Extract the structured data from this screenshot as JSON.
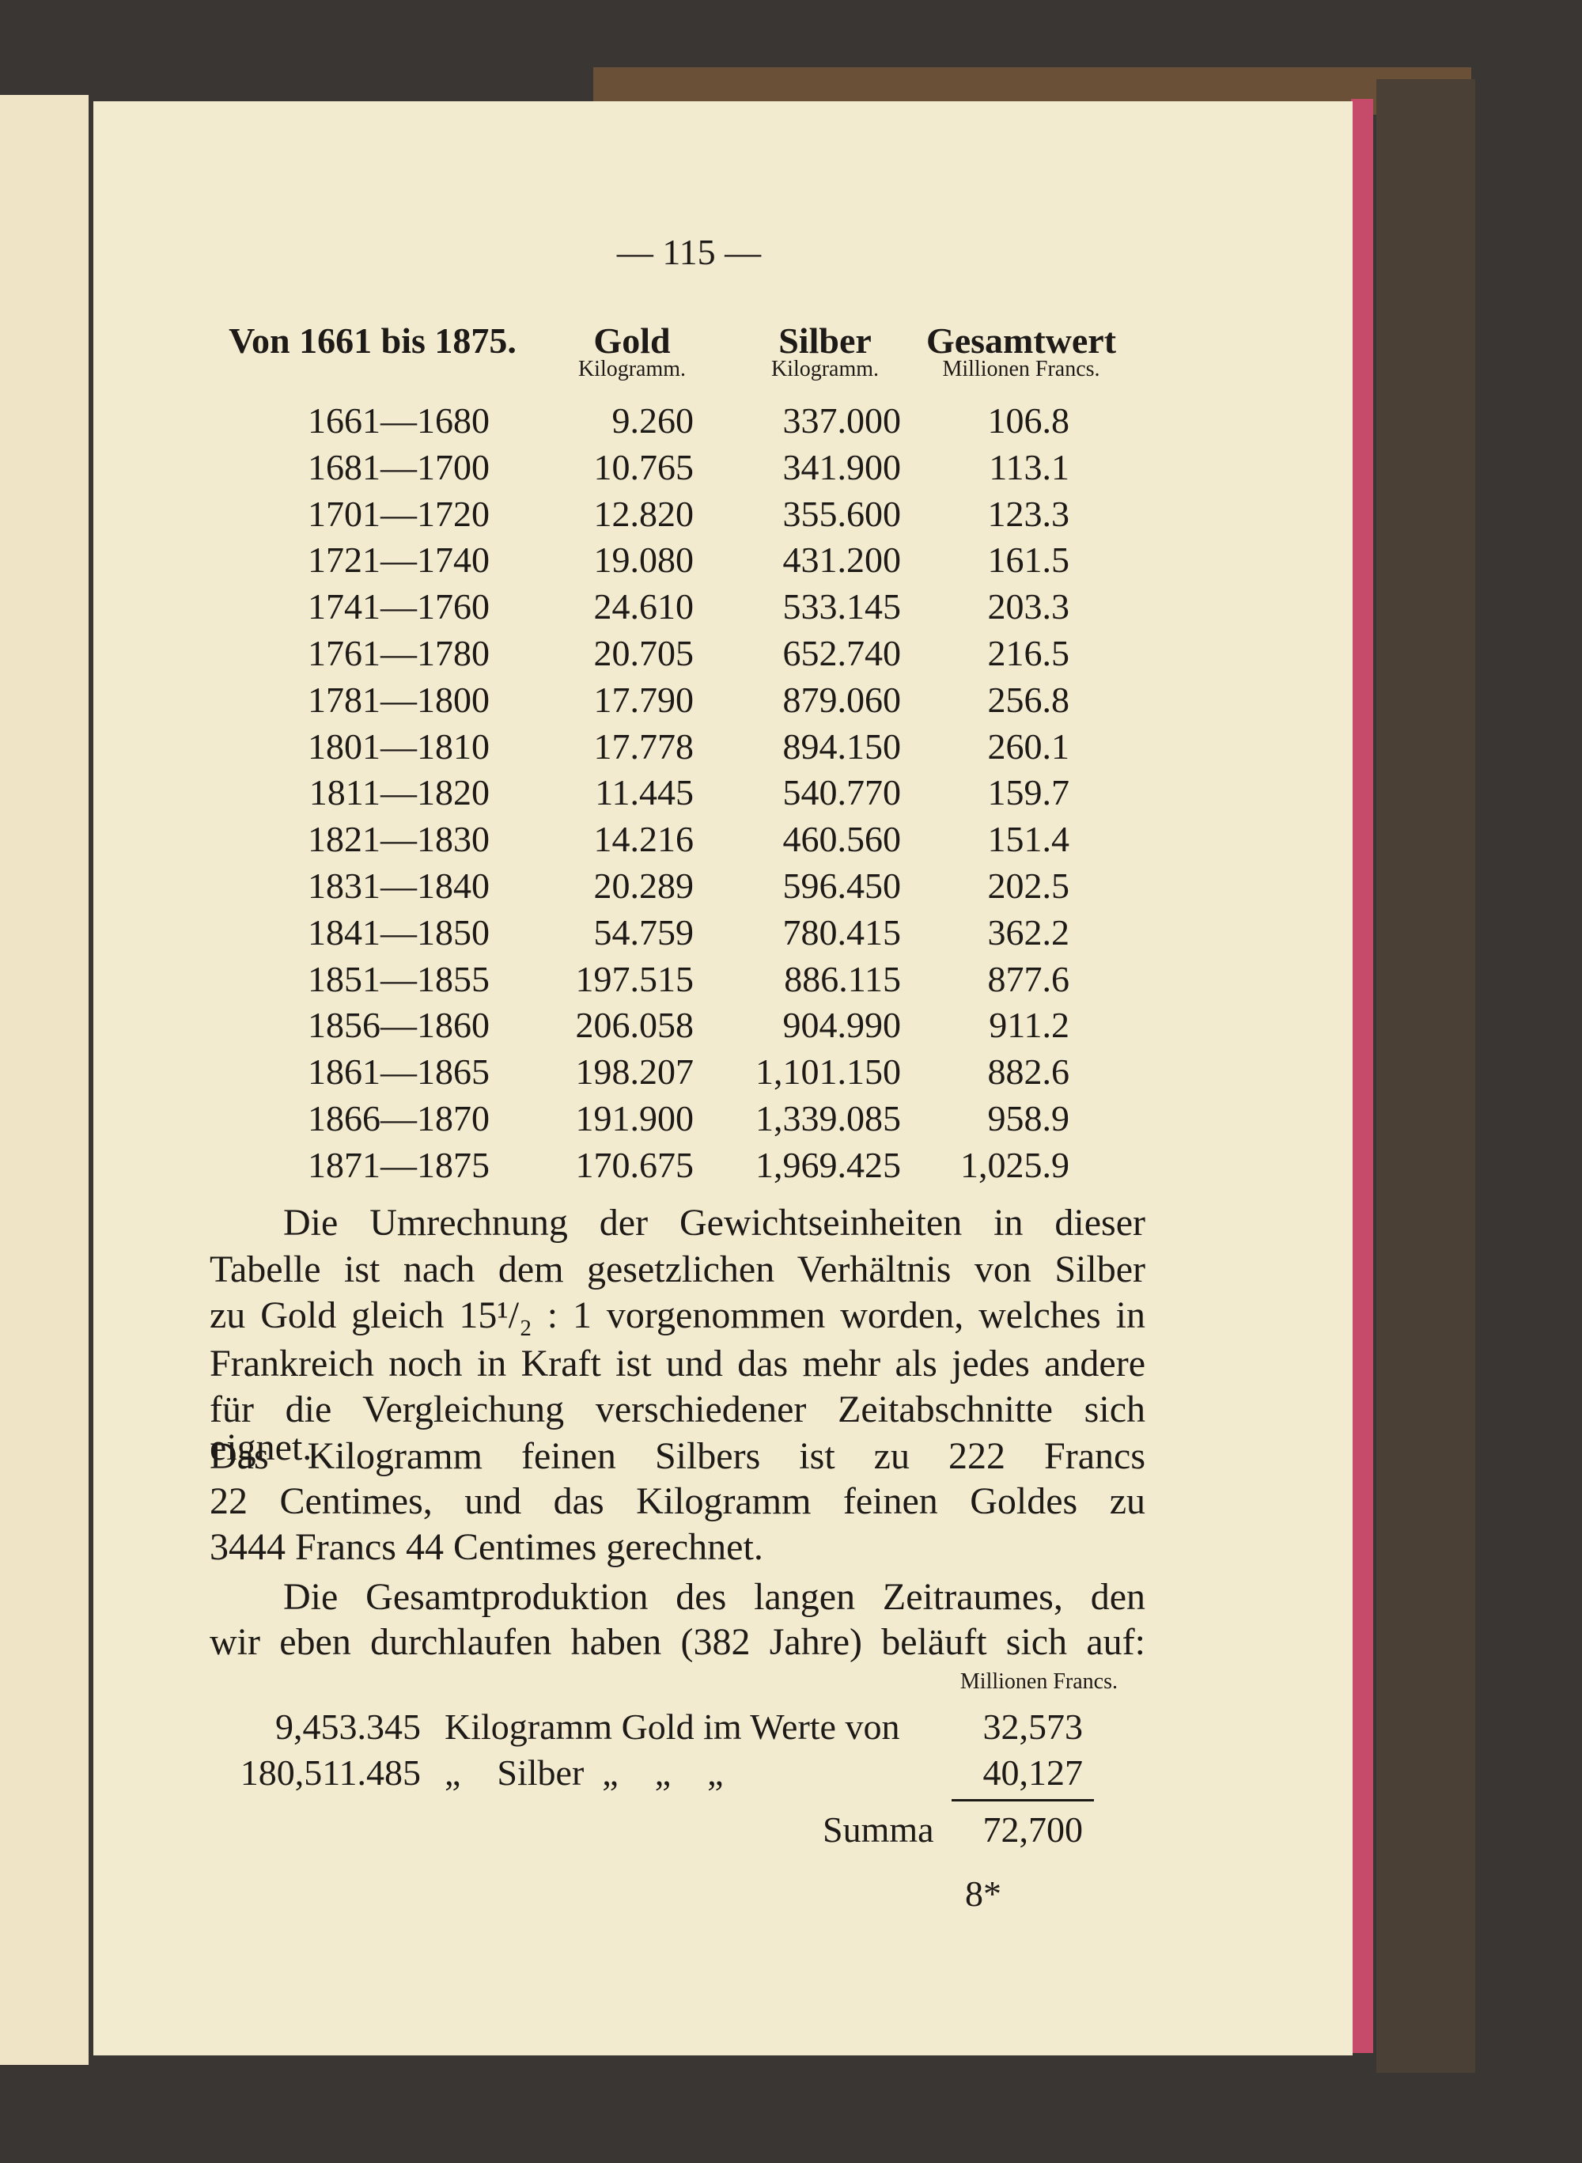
{
  "page_number": "— 115 —",
  "table": {
    "title": "Von 1661 bis 1875.",
    "columns": [
      "Gold",
      "Silber",
      "Gesamtwert"
    ],
    "units": [
      "Kilogramm.",
      "Kilogramm.",
      "Millionen Francs."
    ],
    "rows": [
      [
        "1661—1680",
        "9.260",
        "337.000",
        "106.8"
      ],
      [
        "1681—1700",
        "10.765",
        "341.900",
        "113.1"
      ],
      [
        "1701—1720",
        "12.820",
        "355.600",
        "123.3"
      ],
      [
        "1721—1740",
        "19.080",
        "431.200",
        "161.5"
      ],
      [
        "1741—1760",
        "24.610",
        "533.145",
        "203.3"
      ],
      [
        "1761—1780",
        "20.705",
        "652.740",
        "216.5"
      ],
      [
        "1781—1800",
        "17.790",
        "879.060",
        "256.8"
      ],
      [
        "1801—1810",
        "17.778",
        "894.150",
        "260.1"
      ],
      [
        "1811—1820",
        "11.445",
        "540.770",
        "159.7"
      ],
      [
        "1821—1830",
        "14.216",
        "460.560",
        "151.4"
      ],
      [
        "1831—1840",
        "20.289",
        "596.450",
        "202.5"
      ],
      [
        "1841—1850",
        "54.759",
        "780.415",
        "362.2"
      ],
      [
        "1851—1855",
        "197.515",
        "886.115",
        "877.6"
      ],
      [
        "1856—1860",
        "206.058",
        "904.990",
        "911.2"
      ],
      [
        "1861—1865",
        "198.207",
        "1,101.150",
        "882.6"
      ],
      [
        "1866—1870",
        "191.900",
        "1,339.085",
        "958.9"
      ],
      [
        "1871—1875",
        "170.675",
        "1,969.425",
        "1,025.9"
      ]
    ]
  },
  "paragraphs": [
    [
      "Die Umrechnung der Gewichtseinheiten in dieser",
      "Tabelle ist nach dem gesetzlichen Verhältnis von Silber",
      "zu Gold gleich 15¹/₂ : 1 vorgenommen worden, welches in",
      "Frankreich noch in Kraft ist und das mehr als jedes andere",
      "für die Vergleichung verschiedener Zeitabschnitte sich eignet.",
      "Das Kilogramm feinen Silbers ist zu 222 Francs",
      "22 Centimes, und das Kilogramm feinen Goldes zu",
      "3444 Francs 44 Centimes gerechnet."
    ],
    [
      "Die Gesamtproduktion des langen Zeitraumes, den",
      "wir eben durchlaufen haben (382 Jahre) beläuft sich auf:"
    ]
  ],
  "summary": {
    "unit": "Millionen Francs.",
    "rows": [
      [
        "9,453.345",
        "Kilogramm Gold im Werte von",
        "32,573"
      ],
      [
        "180,511.485",
        "„    Silber  „    „    „",
        "40,127"
      ]
    ],
    "total_label": "Summa",
    "total": "72,700"
  },
  "footer": "8*"
}
